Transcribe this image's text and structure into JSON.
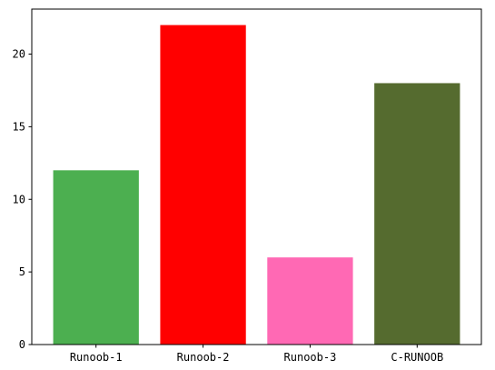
{
  "chart_data": {
    "type": "bar",
    "title": "",
    "xlabel": "",
    "ylabel": "",
    "categories": [
      "Runoob-1",
      "Runoob-2",
      "Runoob-3",
      "C-RUNOOB"
    ],
    "values": [
      12,
      22,
      6,
      18
    ],
    "colors": [
      "#4CAF50",
      "#FF0000",
      "#FF69B4",
      "#556B2F"
    ],
    "ylim": [
      0,
      23.1
    ],
    "yticks": [
      0,
      5,
      10,
      15,
      20
    ],
    "ytick_labels": [
      "0",
      "5",
      "10",
      "15",
      "20"
    ],
    "grid": false,
    "legend": "none"
  }
}
